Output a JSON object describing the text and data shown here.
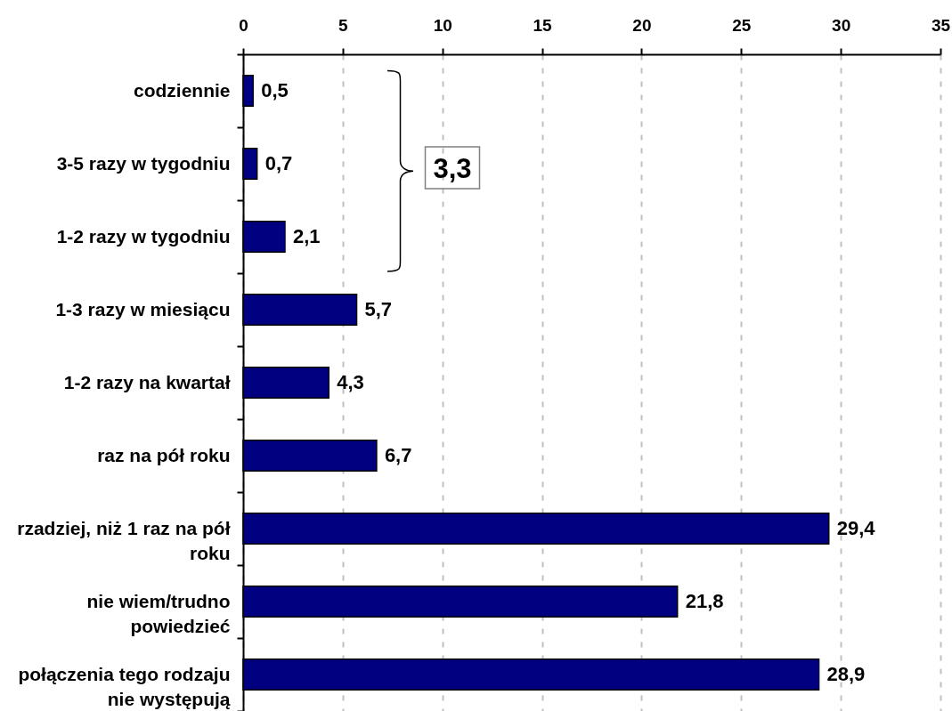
{
  "chart_data": {
    "type": "bar",
    "orientation": "horizontal",
    "categories": [
      "codziennie",
      "3-5 razy w tygodniu",
      "1-2 razy w tygodniu",
      "1-3 razy w miesiącu",
      "1-2 razy na kwartał",
      "raz na pół roku",
      "rzadziej, niż 1 raz na pół roku",
      "nie wiem/trudno powiedzieć",
      "połączenia tego rodzaju nie występują"
    ],
    "values": [
      0.5,
      0.7,
      2.1,
      5.7,
      4.3,
      6.7,
      29.4,
      21.8,
      28.9
    ],
    "color": "#000080",
    "value_labels": [
      "0,5",
      "0,7",
      "2,1",
      "5,7",
      "4,3",
      "6,7",
      "29,4",
      "21,8",
      "28,9"
    ],
    "xlim": [
      0,
      35
    ],
    "xticks": [
      0,
      5,
      10,
      15,
      20,
      25,
      30,
      35
    ],
    "grid": "x",
    "annotations": [
      "3,3"
    ]
  }
}
